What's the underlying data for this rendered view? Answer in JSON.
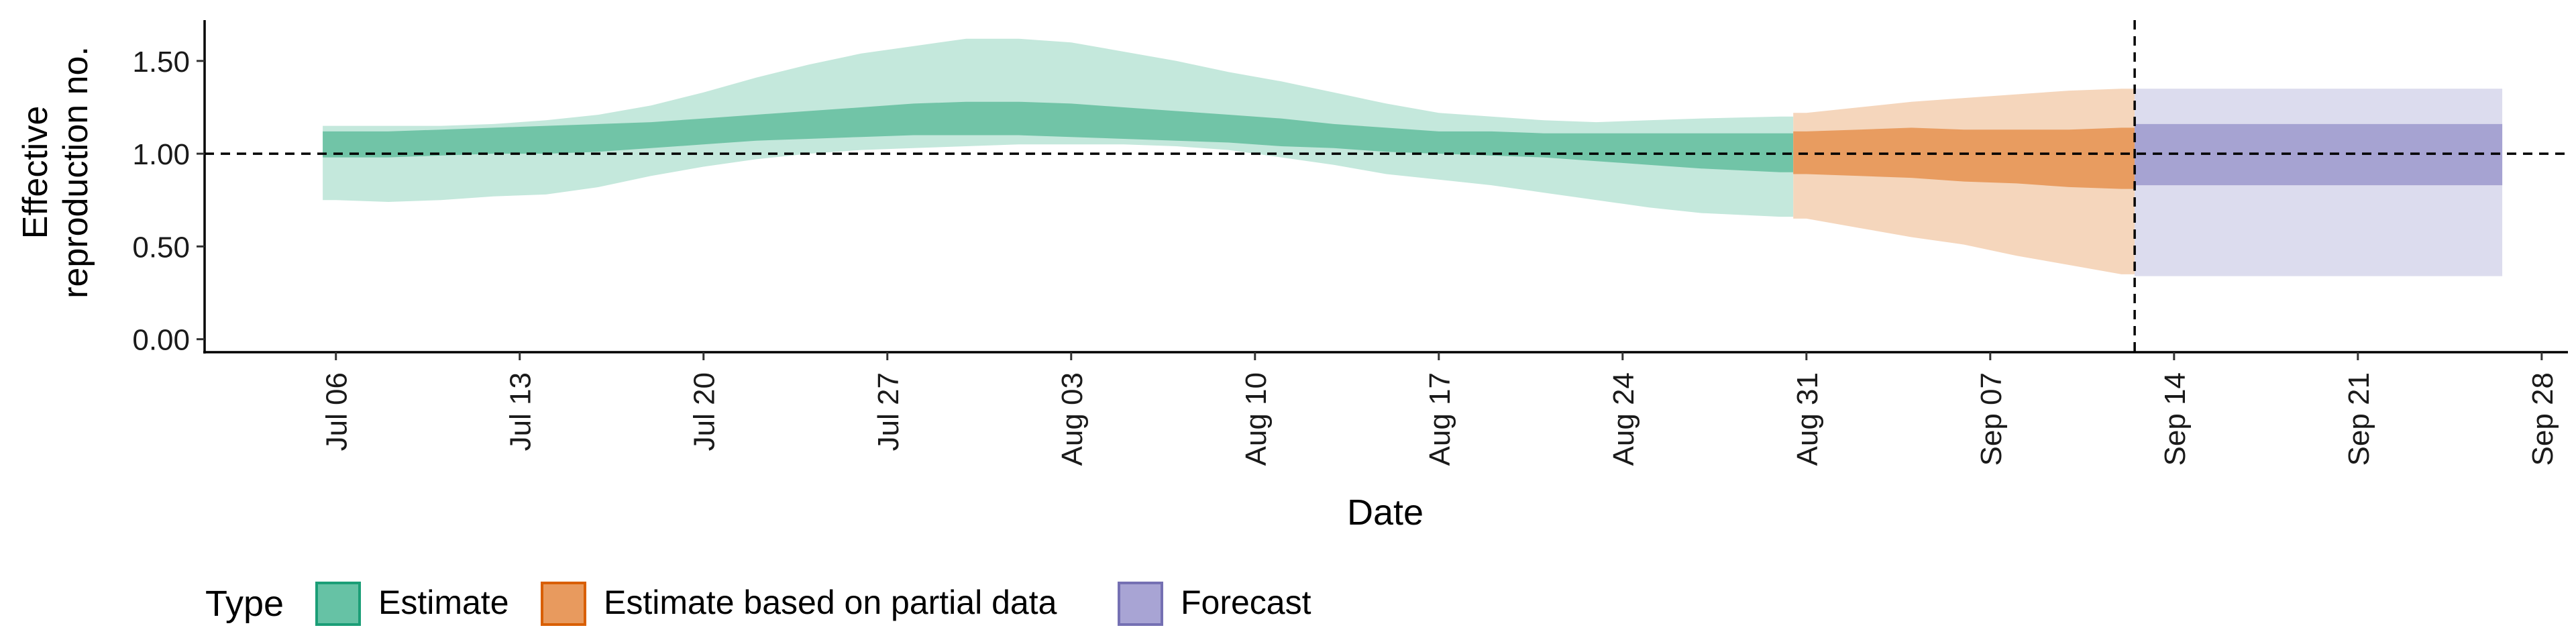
{
  "chart_data": {
    "type": "area",
    "xlabel": "Date",
    "ylabel": [
      "Effective",
      "reproduction no."
    ],
    "xlim": [
      "2021-07-01",
      "2021-09-29"
    ],
    "ylim": [
      -0.07,
      1.72
    ],
    "yticks": [
      0.0,
      0.5,
      1.0,
      1.5
    ],
    "ytick_labels": [
      "0.00",
      "0.50",
      "1.00",
      "1.50"
    ],
    "xticks": [
      "2021-07-06",
      "2021-07-13",
      "2021-07-20",
      "2021-07-27",
      "2021-08-03",
      "2021-08-10",
      "2021-08-17",
      "2021-08-24",
      "2021-08-31",
      "2021-09-07",
      "2021-09-14",
      "2021-09-21",
      "2021-09-28"
    ],
    "xtick_labels": [
      "Jul 06",
      "Jul 13",
      "Jul 20",
      "Jul 27",
      "Aug 03",
      "Aug 10",
      "Aug 17",
      "Aug 24",
      "Aug 31",
      "Sep 07",
      "Sep 14",
      "Sep 21",
      "Sep 28"
    ],
    "reference_hline": 1.0,
    "reference_vline": "2021-09-12",
    "grid": false,
    "legend": {
      "title": "Type",
      "placement": "bottom-left",
      "entries": [
        {
          "label": "Estimate",
          "fill": "#66c2a5",
          "border": "#1b9e77"
        },
        {
          "label": "Estimate based on partial data",
          "fill": "#e89a5e",
          "border": "#d95f02"
        },
        {
          "label": "Forecast",
          "fill": "#a8a4d4",
          "border": "#7570b3"
        }
      ]
    },
    "series": [
      {
        "type_label": "Estimate",
        "colors": {
          "outer": "#c4e8dc",
          "inner": "#71c4a7"
        },
        "x": [
          "2021-07-06",
          "2021-07-08",
          "2021-07-10",
          "2021-07-12",
          "2021-07-14",
          "2021-07-16",
          "2021-07-18",
          "2021-07-20",
          "2021-07-22",
          "2021-07-24",
          "2021-07-26",
          "2021-07-28",
          "2021-07-30",
          "2021-08-01",
          "2021-08-03",
          "2021-08-05",
          "2021-08-07",
          "2021-08-09",
          "2021-08-11",
          "2021-08-13",
          "2021-08-15",
          "2021-08-17",
          "2021-08-19",
          "2021-08-21",
          "2021-08-23",
          "2021-08-25",
          "2021-08-27",
          "2021-08-30"
        ],
        "lower90": [
          0.75,
          0.74,
          0.75,
          0.77,
          0.78,
          0.82,
          0.88,
          0.93,
          0.97,
          1.0,
          1.02,
          1.03,
          1.04,
          1.05,
          1.05,
          1.05,
          1.04,
          1.02,
          0.98,
          0.94,
          0.89,
          0.86,
          0.83,
          0.79,
          0.75,
          0.71,
          0.68,
          0.66
        ],
        "lower50": [
          0.98,
          0.98,
          0.99,
          1.0,
          1.0,
          1.01,
          1.03,
          1.05,
          1.07,
          1.08,
          1.09,
          1.1,
          1.1,
          1.1,
          1.09,
          1.08,
          1.07,
          1.06,
          1.04,
          1.03,
          1.01,
          1.0,
          0.99,
          0.98,
          0.96,
          0.94,
          0.92,
          0.9
        ],
        "upper50": [
          1.12,
          1.12,
          1.13,
          1.14,
          1.15,
          1.16,
          1.17,
          1.19,
          1.21,
          1.23,
          1.25,
          1.27,
          1.28,
          1.28,
          1.27,
          1.25,
          1.23,
          1.21,
          1.19,
          1.16,
          1.14,
          1.12,
          1.12,
          1.11,
          1.11,
          1.11,
          1.11,
          1.11
        ],
        "upper90": [
          1.15,
          1.15,
          1.15,
          1.16,
          1.18,
          1.21,
          1.26,
          1.33,
          1.41,
          1.48,
          1.54,
          1.58,
          1.62,
          1.62,
          1.6,
          1.55,
          1.5,
          1.44,
          1.39,
          1.33,
          1.27,
          1.22,
          1.2,
          1.18,
          1.17,
          1.18,
          1.19,
          1.2
        ]
      },
      {
        "type_label": "Estimate based on partial data",
        "colors": {
          "outer": "#f5d6bc",
          "inner": "#e89c60"
        },
        "x": [
          "2021-08-31",
          "2021-09-02",
          "2021-09-04",
          "2021-09-06",
          "2021-09-08",
          "2021-09-10",
          "2021-09-12"
        ],
        "lower90": [
          0.65,
          0.6,
          0.55,
          0.51,
          0.45,
          0.4,
          0.35
        ],
        "lower50": [
          0.89,
          0.88,
          0.87,
          0.85,
          0.84,
          0.82,
          0.81
        ],
        "upper50": [
          1.12,
          1.13,
          1.14,
          1.13,
          1.13,
          1.13,
          1.14
        ],
        "upper90": [
          1.22,
          1.25,
          1.28,
          1.3,
          1.32,
          1.34,
          1.35
        ]
      },
      {
        "type_label": "Forecast",
        "colors": {
          "outer": "#dcdcee",
          "inner": "#a6a3d2"
        },
        "x": [
          "2021-09-13",
          "2021-09-26"
        ],
        "lower90": [
          0.34,
          0.34
        ],
        "lower50": [
          0.83,
          0.83
        ],
        "upper50": [
          1.16,
          1.16
        ],
        "upper90": [
          1.35,
          1.35
        ]
      }
    ]
  }
}
